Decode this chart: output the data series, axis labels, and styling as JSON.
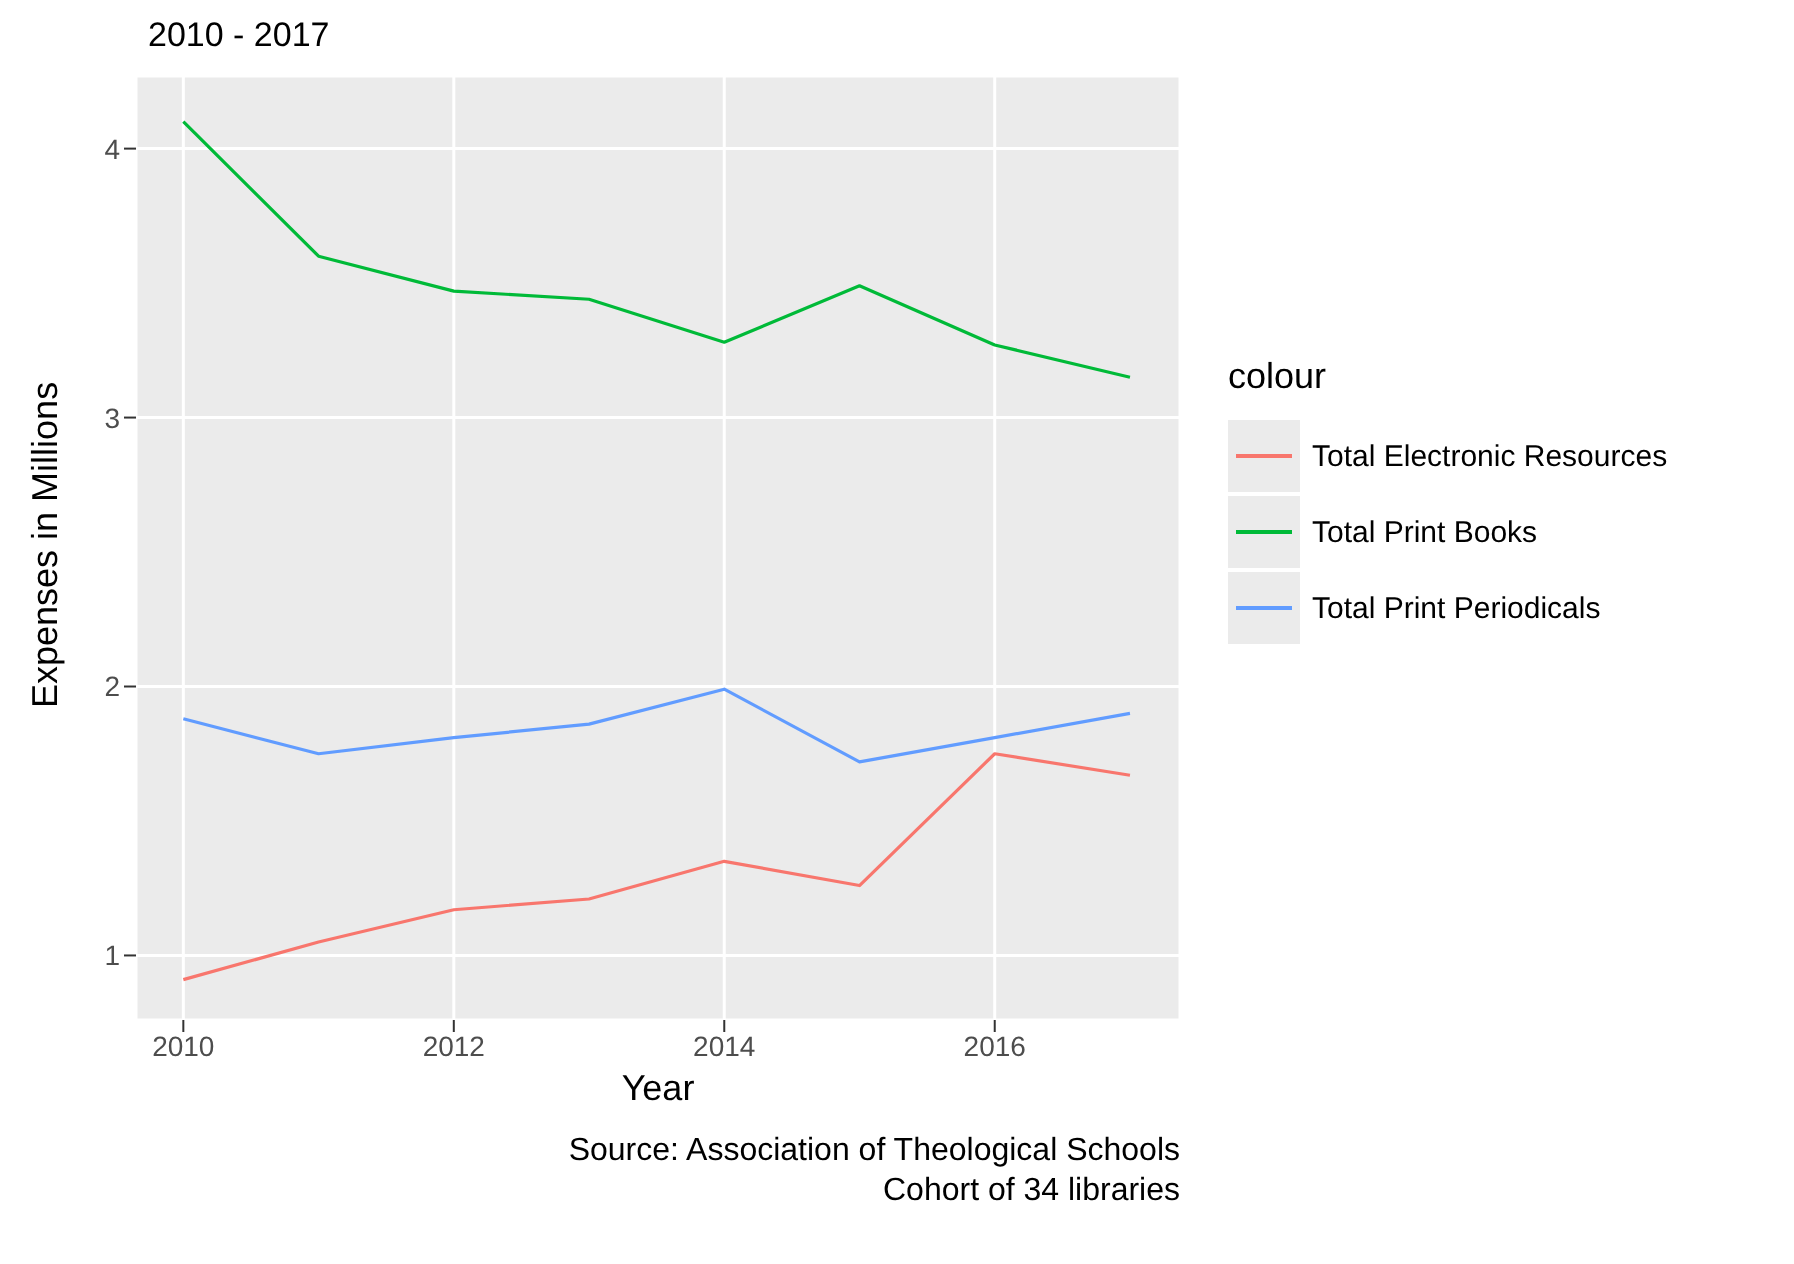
{
  "chart_data": {
    "type": "line",
    "title": "2010 - 2017",
    "xlabel": "Year",
    "ylabel": "Expenses in Millions",
    "legend_title": "colour",
    "x": [
      2010,
      2011,
      2012,
      2013,
      2014,
      2015,
      2016,
      2017
    ],
    "series": [
      {
        "name": "Total Electronic Resources",
        "color": "#f8766d",
        "values": [
          0.91,
          1.05,
          1.17,
          1.21,
          1.35,
          1.26,
          1.75,
          1.67
        ]
      },
      {
        "name": "Total Print Books",
        "color": "#00ba38",
        "values": [
          4.1,
          3.6,
          3.47,
          3.44,
          3.28,
          3.49,
          3.27,
          3.15
        ]
      },
      {
        "name": "Total Print Periodicals",
        "color": "#619cff",
        "values": [
          1.88,
          1.75,
          1.81,
          1.86,
          1.99,
          1.72,
          1.81,
          1.9
        ]
      }
    ],
    "xlim": [
      2009.65,
      2017.37
    ],
    "xticks": [
      2010,
      2012,
      2014,
      2016
    ],
    "ylim": [
      0.76,
      4.27
    ],
    "yticks": [
      1,
      2,
      3,
      4
    ],
    "grid": true,
    "legend": "right",
    "marker": "none",
    "line_style": "solid",
    "annotations": [
      "Source: Association of Theological Schools",
      "Cohort of 34 libraries"
    ]
  }
}
